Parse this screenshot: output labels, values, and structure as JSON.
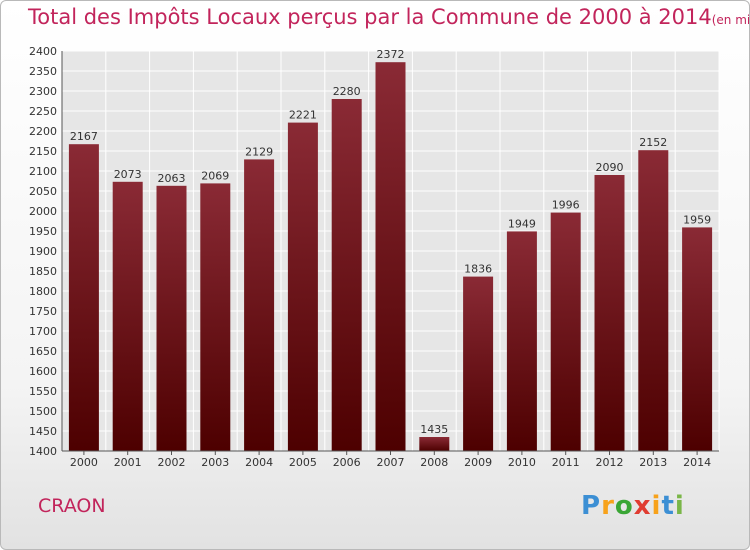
{
  "header": {
    "title": "Total des Impôts Locaux perçus par la Commune de 2000 à 2014",
    "unit": "(en milliers d'€)"
  },
  "footer": {
    "commune": "CRAON",
    "logo": "Proxiti",
    "logo_colors": [
      "#3c8fd4",
      "#f7a21b",
      "#3aa635",
      "#e03c31",
      "#f7a21b",
      "#3c8fd4",
      "#7ab648"
    ]
  },
  "colors": {
    "bar_top": "#8a2a35",
    "bar_bottom": "#4d0000",
    "grid": "#ffffff",
    "plot_bg": "#e6e6e6",
    "title": "#c2245b"
  },
  "chart_data": {
    "type": "bar",
    "title": "Total des Impôts Locaux perçus par la Commune de 2000 à 2014",
    "categories": [
      "2000",
      "2001",
      "2002",
      "2003",
      "2004",
      "2005",
      "2006",
      "2007",
      "2008",
      "2009",
      "2010",
      "2011",
      "2012",
      "2013",
      "2014"
    ],
    "values": [
      2167,
      2073,
      2063,
      2069,
      2129,
      2221,
      2280,
      2372,
      1435,
      1836,
      1949,
      1996,
      2090,
      2152,
      1959
    ],
    "ylim": [
      1400,
      2400
    ],
    "ytick_step": 50,
    "grid": true,
    "xlabel": "",
    "ylabel": ""
  }
}
